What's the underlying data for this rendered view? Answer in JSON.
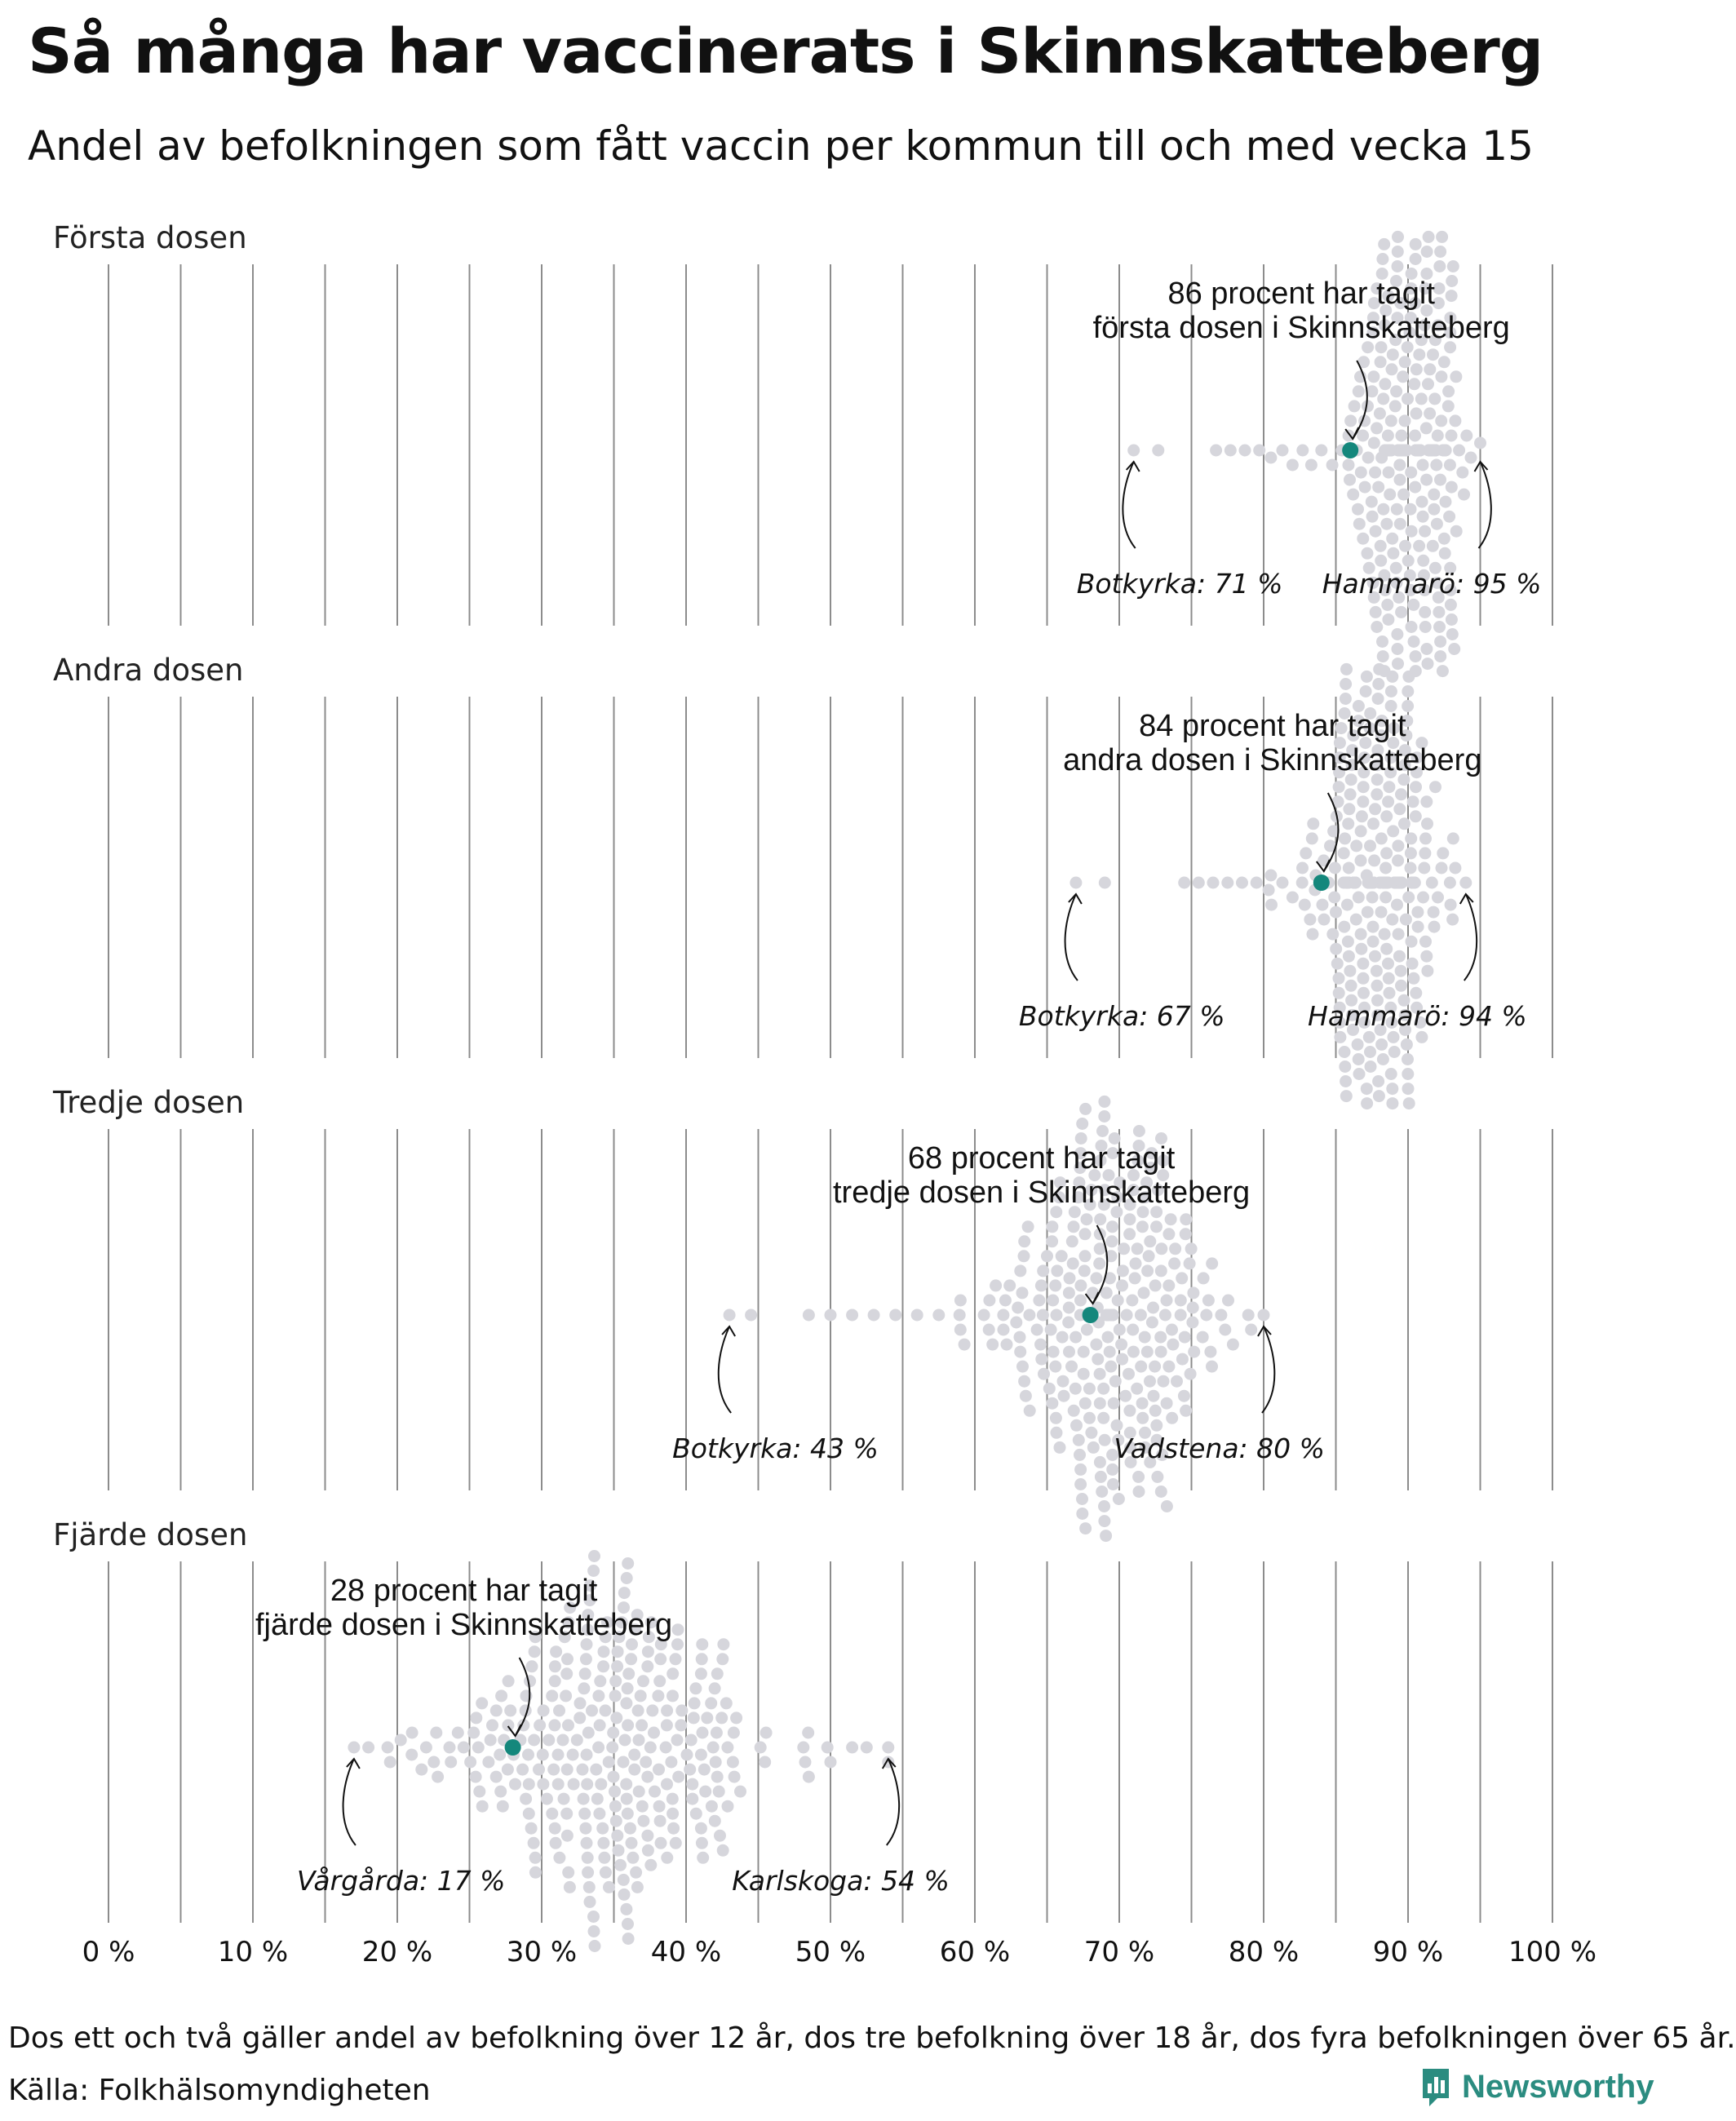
{
  "title": "Så många har vaccinerats i Skinnskatteberg",
  "subtitle": "Andel av befolkningen som fått vaccin per kommun till och med vecka 15",
  "note": "Dos ett och två gäller andel av befolkning över 12 år, dos tre befolkning över 18 år, dos fyra befolkningen över 65 år.",
  "source": "Källa: Folkhälsomyndigheten",
  "logo": "Newsworthy",
  "colors": {
    "dot": "#d6d6dc",
    "highlight": "#14877c",
    "grid": "#8c8c8c",
    "logo": "#2b8c80"
  },
  "chart_data": {
    "type": "scatter",
    "subtype": "beeswarm",
    "x_unit": "%",
    "xlim": [
      0,
      100
    ],
    "x_ticks": [
      0,
      10,
      20,
      30,
      40,
      50,
      60,
      70,
      80,
      90,
      100
    ],
    "x_tick_labels": [
      "0 %",
      "10 %",
      "20 %",
      "30 %",
      "40 %",
      "50 %",
      "60 %",
      "70 %",
      "80 %",
      "90 %",
      "100 %"
    ],
    "grid": "vertical every 5 %",
    "panels": [
      {
        "label": "Första dosen",
        "highlight_value": 86,
        "highlight_text": [
          "86 procent har tagit",
          "första dosen i Skinnskatteberg"
        ],
        "min": {
          "value": 71,
          "text": "Botkyrka: 71 %"
        },
        "max": {
          "value": 95,
          "text": "Hammarö: 95 %"
        },
        "n_points": 290,
        "dist_center": 90,
        "dist_sd": 2.0,
        "tail_values": [
          71,
          72.7,
          76.7,
          77.7,
          78.7,
          79.7,
          80.5,
          81.3,
          82,
          82.7,
          83.3,
          84
        ]
      },
      {
        "label": "Andra dosen",
        "highlight_value": 84,
        "highlight_text": [
          "84 procent har tagit",
          "andra dosen i Skinnskatteberg"
        ],
        "min": {
          "value": 67,
          "text": "Botkyrka: 67 %"
        },
        "max": {
          "value": 94,
          "text": "Hammarö: 94 %"
        },
        "n_points": 290,
        "dist_center": 88,
        "dist_sd": 2.2,
        "tail_values": [
          67,
          69,
          74.5,
          75.5,
          76.5,
          77.5,
          78.5,
          79.5,
          80.5,
          81.3,
          82
        ]
      },
      {
        "label": "Tredje dosen",
        "highlight_value": 68,
        "highlight_text": [
          "68 procent har tagit",
          "tredje dosen i Skinnskatteberg"
        ],
        "min": {
          "value": 43,
          "text": "Botkyrka: 43 %"
        },
        "max": {
          "value": 80,
          "text": "Vadstena: 80 %"
        },
        "n_points": 290,
        "dist_center": 69,
        "dist_sd": 3.8,
        "tail_values": [
          43,
          44.5,
          48.5,
          50,
          51.5,
          53,
          54.5,
          56,
          57.5,
          59
        ]
      },
      {
        "label": "Fjärde dosen",
        "highlight_value": 28,
        "highlight_text": [
          "28 procent har tagit",
          "fjärde dosen i Skinnskatteberg"
        ],
        "min": {
          "value": 17,
          "text": "Vårgårda: 17 %"
        },
        "max": {
          "value": 54,
          "text": "Karlskoga: 54 %"
        },
        "n_points": 290,
        "dist_center": 35,
        "dist_sd": 5.5,
        "tail_values": [
          17,
          18,
          19.5,
          21,
          22,
          48.5,
          50,
          51.5,
          52.5,
          54
        ]
      }
    ]
  }
}
